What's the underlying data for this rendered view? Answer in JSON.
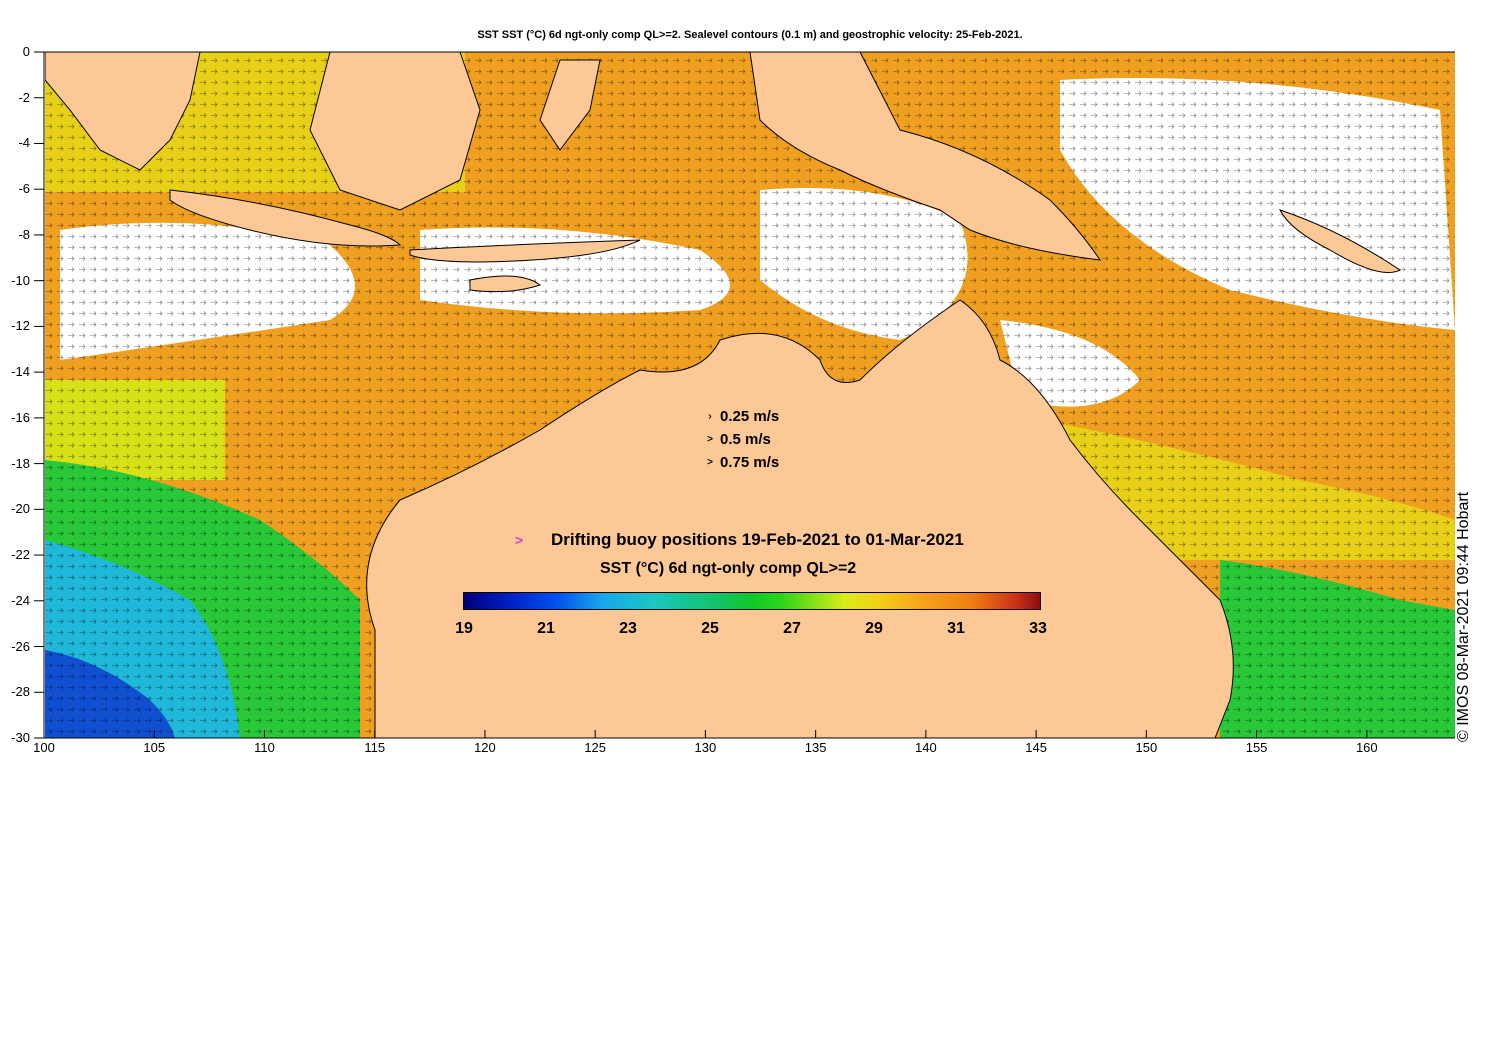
{
  "title": "SST SST (°C) 6d ngt-only comp QL>=2. Sealevel contours (0.1 m) and geostrophic velocity: 25-Feb-2021.",
  "axes": {
    "x_ticks": [
      "100",
      "105",
      "110",
      "115",
      "120",
      "125",
      "130",
      "135",
      "140",
      "145",
      "150",
      "155",
      "160"
    ],
    "y_ticks": [
      "0",
      "-2",
      "-4",
      "-6",
      "-8",
      "-10",
      "-12",
      "-14",
      "-16",
      "-18",
      "-20",
      "-22",
      "-24",
      "-26",
      "-28",
      "-30"
    ],
    "lon_range": [
      100,
      164
    ],
    "lat_range": [
      -30,
      0
    ]
  },
  "velocity_legend": [
    {
      "label": "0.25 m/s",
      "glyph": "›"
    },
    {
      "label": "0.5 m/s",
      "glyph": ">"
    },
    {
      "label": "0.75 m/s",
      "glyph": ">"
    }
  ],
  "buoy": {
    "marker": ">",
    "label": "Drifting buoy positions 19-Feb-2021 to 01-Mar-2021",
    "marker_color": "#d040d0"
  },
  "colorbar": {
    "title": "SST (°C) 6d ngt-only comp QL>=2",
    "labels": [
      "19",
      "21",
      "23",
      "25",
      "27",
      "29",
      "31",
      "33"
    ],
    "range": [
      19,
      33
    ]
  },
  "credit": "© IMOS 08-Mar-2021 09:44 Hobart",
  "colors": {
    "land": "#fcc896",
    "no_data": "#ffffff",
    "warm": "#f0a020",
    "hot": "#ec8c16",
    "mid": "#e8d018",
    "cool": "#28c838",
    "cold": "#20b8d8",
    "coldest": "#1050d0"
  }
}
